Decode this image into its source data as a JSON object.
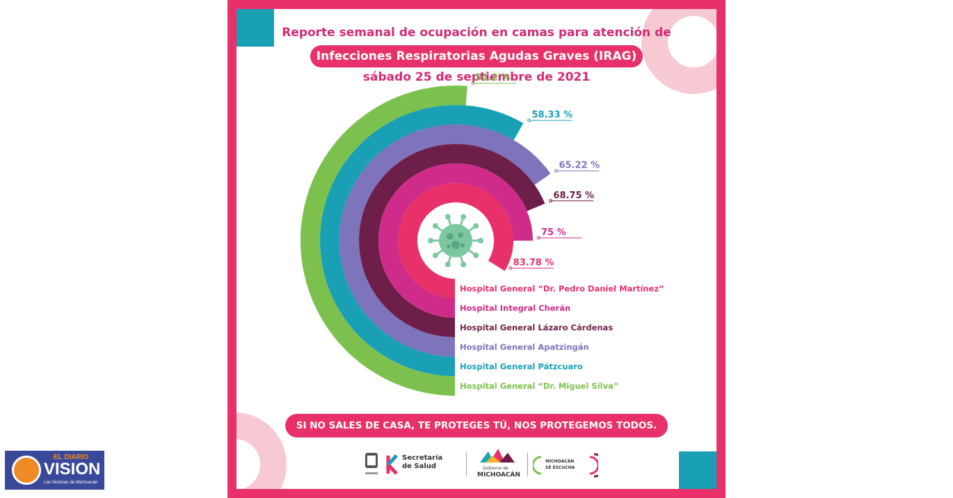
{
  "header": {
    "line1": "Reporte semanal de ocupación en camas para atención de",
    "line2": "Infecciones Respiratorias Agudas Graves (IRAG)",
    "line3": "sábado 25 de septiembre de 2021"
  },
  "footer": {
    "slogan": "SI NO SALES DE CASA, TE PROTEGES TÚ, NOS PROTEGEMOS TODOS."
  },
  "logos": {
    "salud_line1": "Secretaría",
    "salud_line2": "de Salud",
    "gobierno_line1": "Gobierno de",
    "gobierno_line2": "MICHOACÁN",
    "escucha_line1": "MICHOACÁN",
    "escucha_line2": "SE ESCUCHA"
  },
  "brand": {
    "line1": "EL DIARIO",
    "line2": "VISION",
    "line3": "Las Noticias de Michoacán"
  },
  "colors": {
    "frame": "#e8306a",
    "green": "#7cc14d",
    "teal": "#1aa0b4",
    "lavender": "#7e74bb",
    "plum": "#6d1f49",
    "magenta": "#cf2c8a",
    "pink": "#e8306a",
    "virus": "#7cc8a0"
  },
  "chart_data": {
    "type": "radial-bar",
    "unit": "%",
    "series": [
      {
        "name": "Hospital General “Dr. Pedro Daniel Martínez”",
        "value": 83.78,
        "label": "83.78 %",
        "color": "#e8306a"
      },
      {
        "name": "Hospital Integral Cherán",
        "value": 75,
        "label": "75 %",
        "color": "#cf2c8a"
      },
      {
        "name": "Hospital General Lázaro Cárdenas",
        "value": 68.75,
        "label": "68.75 %",
        "color": "#6d1f49"
      },
      {
        "name": "Hospital General Apatzingán",
        "value": 65.22,
        "label": "65.22 %",
        "color": "#7e74bb"
      },
      {
        "name": "Hospital General Pátzcuaro",
        "value": 58.33,
        "label": "58.33 %",
        "color": "#1aa0b4"
      },
      {
        "name": "Hospital General “Dr. Miguel Silva”",
        "value": 51.2,
        "label": "51.2 %",
        "color": "#7cc14d"
      }
    ]
  }
}
